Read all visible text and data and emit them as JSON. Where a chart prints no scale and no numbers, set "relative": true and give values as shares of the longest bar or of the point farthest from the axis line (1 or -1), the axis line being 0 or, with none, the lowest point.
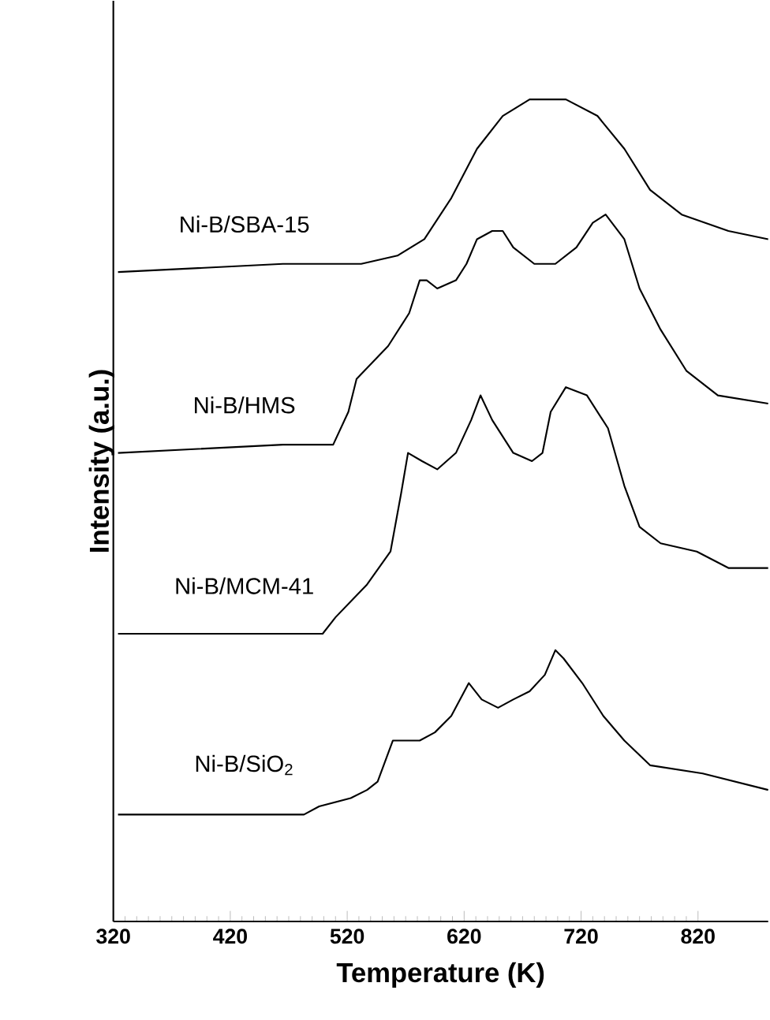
{
  "chart_data": {
    "type": "line",
    "xlabel": "Temperature (K)",
    "ylabel": "Intensity (a.u.)",
    "relative": true,
    "xlim": [
      320,
      880
    ],
    "xticks": [
      320,
      420,
      520,
      620,
      720,
      820
    ],
    "marker": "none",
    "line_style": "solid",
    "legend": false,
    "grid": false,
    "series": [
      {
        "name": "Ni-B/SBA-15",
        "color": "#000000",
        "x": [
          324,
          465,
          532,
          563,
          586,
          609,
          631,
          653,
          676,
          687,
          707,
          734,
          757,
          779,
          806,
          846,
          880
        ],
        "values": [
          0.79,
          0.8,
          0.8,
          0.81,
          0.83,
          0.88,
          0.94,
          0.98,
          1.0,
          1.0,
          1.0,
          0.98,
          0.94,
          0.89,
          0.86,
          0.84,
          0.83
        ]
      },
      {
        "name": "Ni-B/HMS",
        "color": "#000000",
        "x": [
          324,
          465,
          508,
          521,
          528,
          555,
          573,
          582,
          588,
          597,
          613,
          622,
          631,
          644,
          653,
          662,
          680,
          698,
          716,
          730,
          741,
          757,
          770,
          788,
          810,
          837,
          880
        ],
        "values": [
          0.57,
          0.58,
          0.58,
          0.62,
          0.66,
          0.7,
          0.74,
          0.78,
          0.78,
          0.77,
          0.78,
          0.8,
          0.83,
          0.84,
          0.84,
          0.82,
          0.8,
          0.8,
          0.82,
          0.85,
          0.86,
          0.83,
          0.77,
          0.72,
          0.67,
          0.64,
          0.63
        ]
      },
      {
        "name": "Ni-B/MCM-41",
        "color": "#000000",
        "x": [
          324,
          465,
          499,
          510,
          537,
          557,
          566,
          572,
          584,
          597,
          613,
          626,
          634,
          644,
          662,
          678,
          687,
          694,
          707,
          725,
          743,
          757,
          770,
          788,
          819,
          846,
          880
        ],
        "values": [
          0.35,
          0.35,
          0.35,
          0.37,
          0.41,
          0.45,
          0.52,
          0.57,
          0.56,
          0.55,
          0.57,
          0.61,
          0.64,
          0.61,
          0.57,
          0.56,
          0.57,
          0.62,
          0.65,
          0.64,
          0.6,
          0.53,
          0.48,
          0.46,
          0.45,
          0.43,
          0.43
        ]
      },
      {
        "name": "Ni-B/SiO$_{2}$",
        "color": "#000000",
        "x": [
          324,
          465,
          483,
          496,
          523,
          537,
          546,
          559,
          568,
          582,
          595,
          609,
          624,
          635,
          649,
          662,
          676,
          689,
          698,
          705,
          721,
          739,
          757,
          779,
          824,
          880
        ],
        "values": [
          0.13,
          0.13,
          0.13,
          0.14,
          0.15,
          0.16,
          0.17,
          0.22,
          0.22,
          0.22,
          0.23,
          0.25,
          0.29,
          0.27,
          0.26,
          0.27,
          0.28,
          0.3,
          0.33,
          0.32,
          0.29,
          0.25,
          0.22,
          0.19,
          0.18,
          0.16
        ]
      }
    ]
  }
}
